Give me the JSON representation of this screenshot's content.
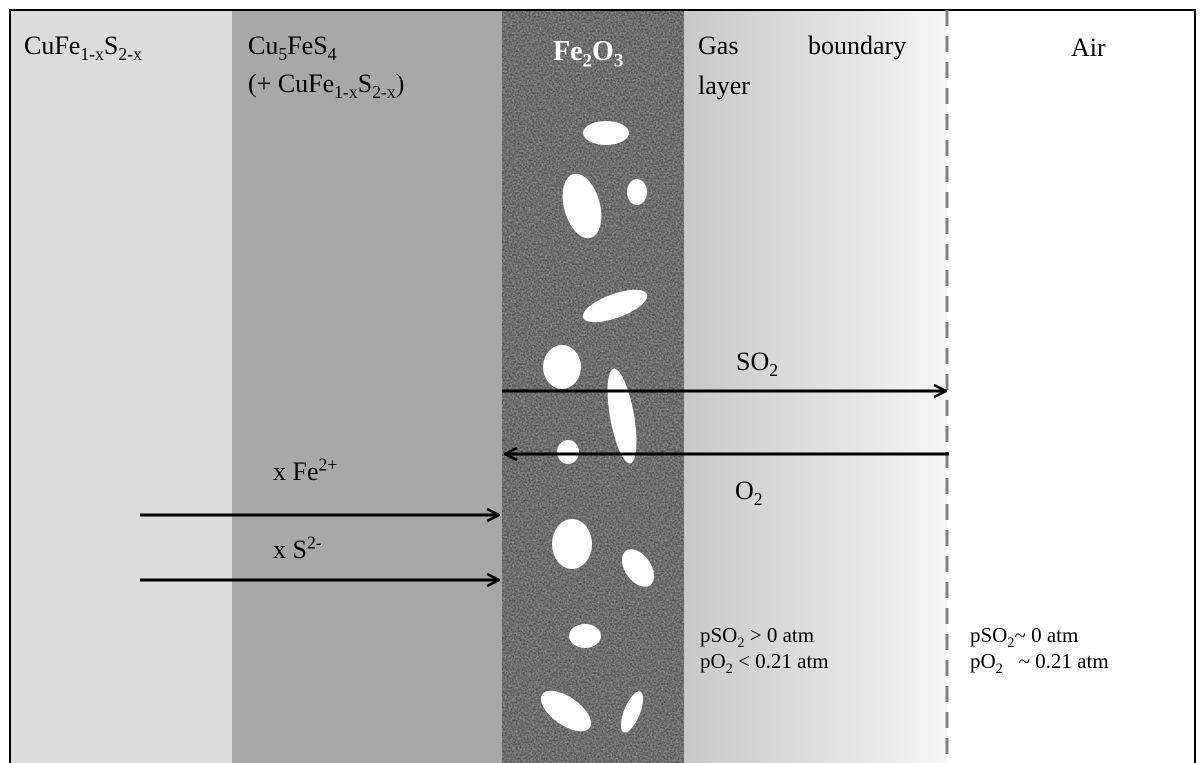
{
  "layers": {
    "chalcopyrite": {
      "base": "CuFe",
      "s1": "1-x",
      "mid": "S",
      "s2": "2-x"
    },
    "bornite": {
      "line1": {
        "a": "Cu",
        "s1": "5",
        "b": "FeS",
        "s2": "4"
      },
      "line2": {
        "a": "(+ CuFe",
        "s1": "1-x",
        "b": "S",
        "s2": "2-x",
        "c": ")"
      }
    },
    "oxide": {
      "a": "Fe",
      "s1": "2",
      "b": "O",
      "s2": "3"
    },
    "gas": {
      "word1": "Gas",
      "word2": "boundary",
      "word3": "layer"
    },
    "air": {
      "label": "Air"
    }
  },
  "fluxes": {
    "so2": {
      "a": "SO",
      "s": "2"
    },
    "o2": {
      "a": "O",
      "s": "2"
    },
    "fe": {
      "a": "x Fe",
      "sup": "2+"
    },
    "s": {
      "a": "x S",
      "sup": "2-"
    }
  },
  "conditions": {
    "gas_layer": {
      "line1": {
        "a": "pSO",
        "s": "2",
        "b": " > 0 atm"
      },
      "line2": {
        "a": "pO",
        "s": "2",
        "b": " < 0.21 atm"
      }
    },
    "air": {
      "line1": {
        "a": "pSO",
        "s": "2",
        "b": "~ 0 atm"
      },
      "line2": {
        "a": "pO",
        "s": "2",
        "b": "   ~ 0.21 atm"
      }
    }
  },
  "colors": {
    "chalcopyrite_fill": "#dcdcdc",
    "bornite_fill": "#a8a8a8",
    "oxide_fill": "#4a4a4a",
    "gas_gradient_start": "#c8c8c8",
    "gas_gradient_end": "#f6f6f6",
    "air_fill": "#ffffff",
    "boundary_dash": "#808080",
    "arrow": "#000000"
  }
}
